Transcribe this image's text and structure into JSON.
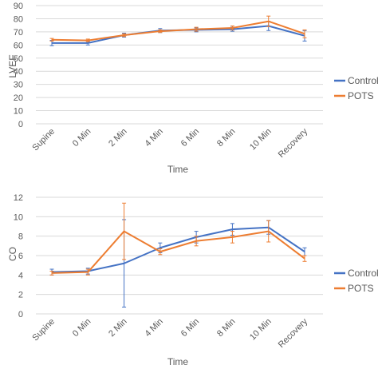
{
  "chart_data": [
    {
      "type": "line",
      "xlabel": "Time",
      "ylabel": "LVEF",
      "categories": [
        "Supine",
        "0 Min",
        "2 Min",
        "4 Min",
        "6 Min",
        "8 Min",
        "10 Min",
        "Recovery"
      ],
      "ylim": [
        0,
        90
      ],
      "yticks": [
        0,
        10,
        20,
        30,
        40,
        50,
        60,
        70,
        80,
        90
      ],
      "grid": true,
      "legend_position": "right",
      "series": [
        {
          "name": "Controls",
          "color": "#4472C4",
          "values": [
            61.5,
            61.5,
            67.5,
            71,
            71.5,
            72,
            74.5,
            67
          ],
          "error": [
            2,
            1.5,
            1.5,
            1.5,
            1.5,
            1.5,
            3.5,
            4
          ]
        },
        {
          "name": "POTS",
          "color": "#ED7D31",
          "values": [
            64,
            63.5,
            67.5,
            70.5,
            72,
            73,
            78,
            68.5
          ],
          "error": [
            1,
            1,
            1,
            1,
            1.5,
            1.5,
            4,
            3
          ]
        }
      ]
    },
    {
      "type": "line",
      "xlabel": "Time",
      "ylabel": "CO",
      "categories": [
        "Supine",
        "0 Min",
        "2 Min",
        "4 Min",
        "6 Min",
        "8 Min",
        "10 Min",
        "Recovery"
      ],
      "ylim": [
        0,
        12
      ],
      "yticks": [
        0,
        2,
        4,
        6,
        8,
        10,
        12
      ],
      "grid": true,
      "legend_position": "right",
      "series": [
        {
          "name": "Controls",
          "color": "#4472C4",
          "values": [
            4.3,
            4.4,
            5.2,
            6.8,
            7.9,
            8.7,
            8.9,
            6.4
          ],
          "error": [
            0.3,
            0.3,
            4.5,
            0.5,
            0.6,
            0.6,
            0.7,
            0.4
          ]
        },
        {
          "name": "POTS",
          "color": "#ED7D31",
          "values": [
            4.2,
            4.3,
            8.5,
            6.4,
            7.5,
            7.9,
            8.5,
            5.7
          ],
          "error": [
            0.2,
            0.3,
            2.9,
            0.3,
            0.5,
            0.6,
            1.1,
            0.3
          ]
        }
      ]
    }
  ]
}
